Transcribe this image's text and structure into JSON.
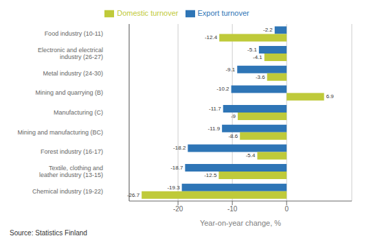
{
  "chart_data": {
    "type": "bar",
    "orientation": "horizontal",
    "categories": [
      "Food industry (10-11)",
      "Electronic and electrical\nindustry (26-27)",
      "Metal industry (24-30)",
      "Mining and quarrying (B)",
      "Manufacturing (C)",
      "Mining and manufacturing (BC)",
      "Forest industry (16-17)",
      "Textile, clothing and\nleather industry (13-15)",
      "Chemical industry (19-22)"
    ],
    "series": [
      {
        "name": "Export turnover",
        "color": "#2E75B6",
        "values": [
          -2.2,
          -5.1,
          -9.1,
          -10.2,
          -11.7,
          -11.9,
          -18.2,
          -18.7,
          -19.3
        ]
      },
      {
        "name": "Domestic turnover",
        "color": "#BFCA3A",
        "values": [
          -12.4,
          -4.1,
          -3.6,
          6.9,
          -9.0,
          -8.6,
          -5.4,
          -12.5,
          -26.7
        ]
      }
    ],
    "xlabel": "Year-on-year change, %",
    "source": "Source: Statistics Finland",
    "xlim": [
      -29,
      12
    ],
    "xticks": [
      -20,
      -10,
      0
    ],
    "grid": true,
    "legend": "top",
    "data_labels": true
  }
}
